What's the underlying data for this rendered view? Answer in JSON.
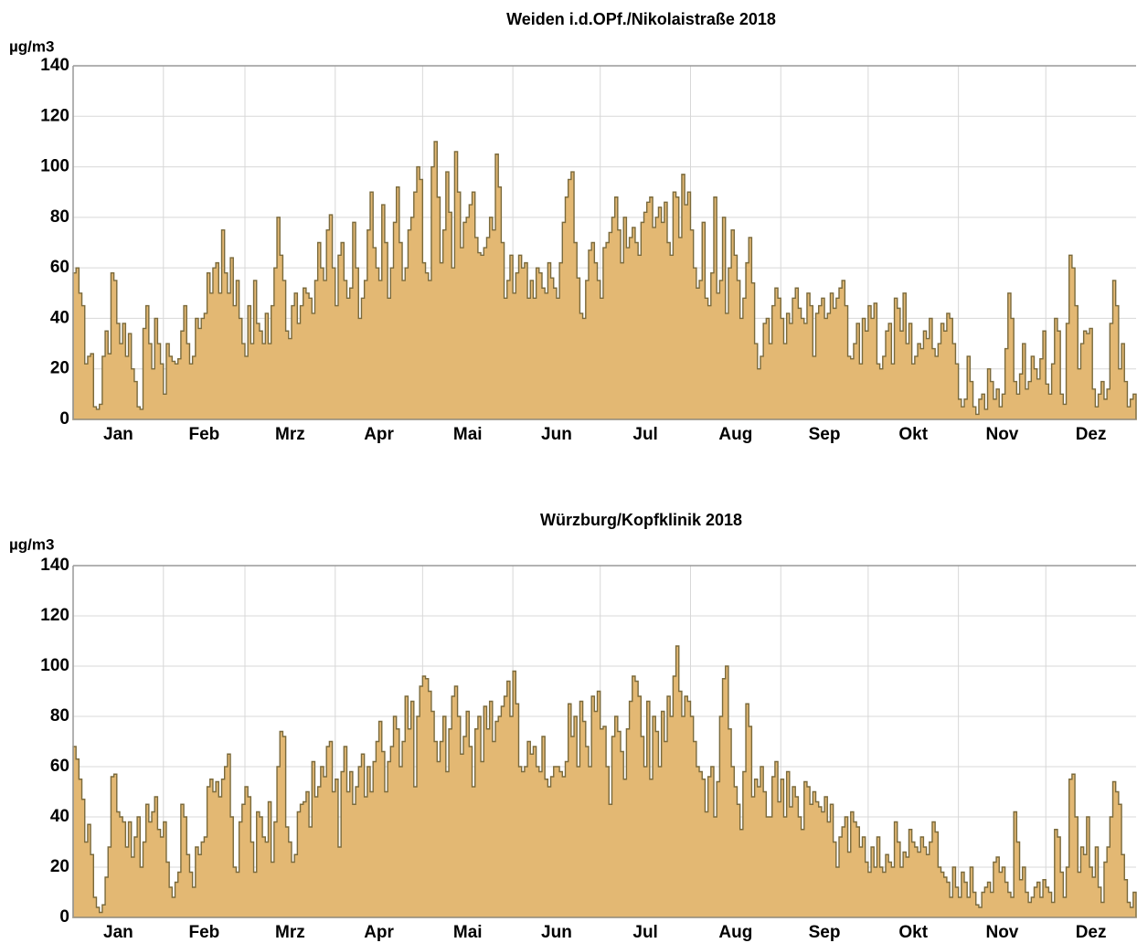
{
  "chart_data": [
    {
      "type": "area",
      "title": "Weiden i.d.OPf./Nikolaistraße 2018",
      "y_label": "µg/m3",
      "color": "#e3b873",
      "line_color": "#7a6a3c",
      "grid": true,
      "xlim": [
        0,
        365
      ],
      "xticks": [
        {
          "value": 0,
          "label": "Jan"
        },
        {
          "value": 31,
          "label": "Feb"
        },
        {
          "value": 59,
          "label": "Mrz"
        },
        {
          "value": 90,
          "label": "Apr"
        },
        {
          "value": 120,
          "label": "Mai"
        },
        {
          "value": 151,
          "label": "Jun"
        },
        {
          "value": 181,
          "label": "Jul"
        },
        {
          "value": 212,
          "label": "Aug"
        },
        {
          "value": 243,
          "label": "Sep"
        },
        {
          "value": 273,
          "label": "Okt"
        },
        {
          "value": 304,
          "label": "Nov"
        },
        {
          "value": 334,
          "label": "Dez"
        }
      ],
      "ylim": [
        0,
        140
      ],
      "yticks": [
        0,
        20,
        40,
        60,
        80,
        100,
        120,
        140
      ],
      "values": [
        58,
        60,
        50,
        45,
        22,
        25,
        26,
        5,
        4,
        6,
        25,
        35,
        26,
        58,
        55,
        38,
        30,
        38,
        25,
        34,
        20,
        15,
        5,
        4,
        36,
        45,
        30,
        20,
        40,
        30,
        22,
        10,
        30,
        25,
        23,
        22,
        24,
        35,
        45,
        30,
        22,
        25,
        40,
        36,
        40,
        42,
        58,
        50,
        60,
        62,
        50,
        75,
        58,
        50,
        64,
        45,
        55,
        40,
        30,
        25,
        45,
        30,
        55,
        38,
        35,
        30,
        42,
        30,
        45,
        60,
        80,
        65,
        55,
        35,
        32,
        45,
        50,
        38,
        45,
        52,
        50,
        48,
        42,
        55,
        70,
        60,
        55,
        75,
        81,
        60,
        45,
        65,
        70,
        55,
        48,
        52,
        78,
        60,
        40,
        48,
        55,
        75,
        90,
        68,
        60,
        55,
        85,
        70,
        48,
        60,
        78,
        92,
        70,
        55,
        60,
        75,
        80,
        90,
        100,
        95,
        62,
        58,
        55,
        100,
        110,
        88,
        62,
        75,
        98,
        82,
        60,
        106,
        90,
        68,
        78,
        80,
        85,
        90,
        72,
        66,
        65,
        68,
        72,
        80,
        75,
        105,
        92,
        70,
        48,
        55,
        65,
        50,
        58,
        65,
        60,
        62,
        48,
        55,
        48,
        60,
        58,
        52,
        50,
        62,
        56,
        52,
        48,
        62,
        78,
        88,
        95,
        98,
        70,
        56,
        42,
        40,
        55,
        67,
        70,
        62,
        55,
        48,
        68,
        70,
        74,
        80,
        88,
        75,
        62,
        80,
        68,
        72,
        76,
        70,
        65,
        78,
        82,
        86,
        88,
        76,
        80,
        84,
        78,
        86,
        70,
        65,
        90,
        88,
        72,
        97,
        85,
        90,
        75,
        60,
        52,
        55,
        78,
        48,
        45,
        58,
        88,
        50,
        55,
        80,
        42,
        60,
        75,
        65,
        55,
        40,
        48,
        62,
        72,
        54,
        30,
        20,
        25,
        38,
        40,
        30,
        45,
        52,
        48,
        40,
        30,
        42,
        38,
        48,
        52,
        44,
        40,
        38,
        50,
        45,
        25,
        42,
        45,
        48,
        40,
        42,
        50,
        44,
        48,
        52,
        55,
        45,
        25,
        24,
        30,
        38,
        22,
        40,
        35,
        45,
        40,
        46,
        22,
        20,
        25,
        35,
        38,
        22,
        48,
        44,
        35,
        50,
        30,
        38,
        22,
        25,
        30,
        28,
        35,
        32,
        40,
        28,
        25,
        30,
        38,
        35,
        42,
        40,
        30,
        22,
        8,
        5,
        8,
        25,
        15,
        5,
        2,
        8,
        10,
        4,
        20,
        15,
        8,
        12,
        5,
        10,
        28,
        50,
        40,
        15,
        10,
        18,
        30,
        12,
        15,
        25,
        20,
        16,
        24,
        35,
        14,
        10,
        22,
        40,
        35,
        10,
        6,
        38,
        65,
        60,
        45,
        20,
        30,
        35,
        34,
        36,
        12,
        5,
        10,
        15,
        8,
        12,
        38,
        55,
        45,
        20,
        30,
        15,
        5,
        8,
        10
      ]
    },
    {
      "type": "area",
      "title": "Würzburg/Kopfklinik 2018",
      "y_label": "µg/m3",
      "color": "#e3b873",
      "line_color": "#7a6a3c",
      "grid": true,
      "xlim": [
        0,
        365
      ],
      "xticks": [
        {
          "value": 0,
          "label": "Jan"
        },
        {
          "value": 31,
          "label": "Feb"
        },
        {
          "value": 59,
          "label": "Mrz"
        },
        {
          "value": 90,
          "label": "Apr"
        },
        {
          "value": 120,
          "label": "Mai"
        },
        {
          "value": 151,
          "label": "Jun"
        },
        {
          "value": 181,
          "label": "Jul"
        },
        {
          "value": 212,
          "label": "Aug"
        },
        {
          "value": 243,
          "label": "Sep"
        },
        {
          "value": 273,
          "label": "Okt"
        },
        {
          "value": 304,
          "label": "Nov"
        },
        {
          "value": 334,
          "label": "Dez"
        }
      ],
      "ylim": [
        0,
        140
      ],
      "yticks": [
        0,
        20,
        40,
        60,
        80,
        100,
        120,
        140
      ],
      "values": [
        68,
        63,
        55,
        47,
        30,
        37,
        25,
        8,
        4,
        2,
        5,
        16,
        28,
        56,
        57,
        42,
        40,
        38,
        28,
        38,
        24,
        32,
        40,
        20,
        30,
        45,
        38,
        42,
        48,
        35,
        32,
        38,
        22,
        12,
        8,
        14,
        18,
        45,
        40,
        25,
        18,
        12,
        28,
        25,
        30,
        32,
        52,
        55,
        50,
        54,
        48,
        55,
        60,
        65,
        40,
        20,
        18,
        38,
        45,
        52,
        48,
        30,
        18,
        42,
        40,
        32,
        30,
        46,
        22,
        38,
        60,
        74,
        72,
        36,
        30,
        22,
        25,
        42,
        45,
        46,
        50,
        36,
        62,
        48,
        52,
        60,
        56,
        68,
        70,
        50,
        55,
        28,
        58,
        68,
        50,
        58,
        45,
        52,
        60,
        65,
        48,
        60,
        50,
        62,
        70,
        78,
        66,
        50,
        62,
        68,
        80,
        75,
        60,
        70,
        88,
        75,
        86,
        52,
        80,
        92,
        96,
        95,
        90,
        82,
        70,
        62,
        70,
        80,
        58,
        75,
        88,
        92,
        80,
        65,
        72,
        82,
        68,
        52,
        75,
        80,
        62,
        84,
        75,
        86,
        70,
        78,
        80,
        84,
        88,
        94,
        80,
        98,
        85,
        60,
        58,
        60,
        70,
        65,
        68,
        60,
        58,
        72,
        55,
        52,
        56,
        60,
        60,
        58,
        56,
        62,
        85,
        72,
        80,
        60,
        86,
        78,
        68,
        60,
        88,
        82,
        90,
        75,
        76,
        60,
        45,
        72,
        80,
        74,
        66,
        55,
        75,
        86,
        96,
        94,
        88,
        72,
        60,
        86,
        55,
        80,
        74,
        60,
        82,
        70,
        88,
        80,
        96,
        108,
        90,
        80,
        88,
        86,
        80,
        70,
        60,
        58,
        55,
        42,
        56,
        60,
        40,
        54,
        80,
        95,
        100,
        75,
        60,
        52,
        45,
        35,
        58,
        85,
        76,
        48,
        55,
        52,
        60,
        50,
        40,
        40,
        56,
        62,
        46,
        55,
        40,
        58,
        44,
        52,
        48,
        40,
        35,
        54,
        52,
        45,
        50,
        46,
        44,
        42,
        48,
        38,
        45,
        30,
        20,
        32,
        36,
        40,
        26,
        42,
        38,
        36,
        28,
        32,
        22,
        18,
        28,
        20,
        32,
        20,
        18,
        25,
        22,
        20,
        38,
        30,
        20,
        26,
        24,
        35,
        30,
        28,
        26,
        32,
        28,
        25,
        30,
        38,
        34,
        20,
        18,
        16,
        14,
        8,
        20,
        12,
        8,
        18,
        14,
        8,
        20,
        10,
        5,
        4,
        10,
        12,
        14,
        10,
        22,
        24,
        18,
        20,
        14,
        10,
        8,
        42,
        30,
        15,
        20,
        10,
        6,
        8,
        12,
        14,
        8,
        15,
        12,
        10,
        6,
        35,
        32,
        18,
        8,
        20,
        55,
        57,
        40,
        18,
        28,
        25,
        40,
        20,
        16,
        28,
        12,
        6,
        22,
        28,
        40,
        54,
        50,
        45,
        25,
        15,
        6,
        4,
        10
      ]
    }
  ]
}
